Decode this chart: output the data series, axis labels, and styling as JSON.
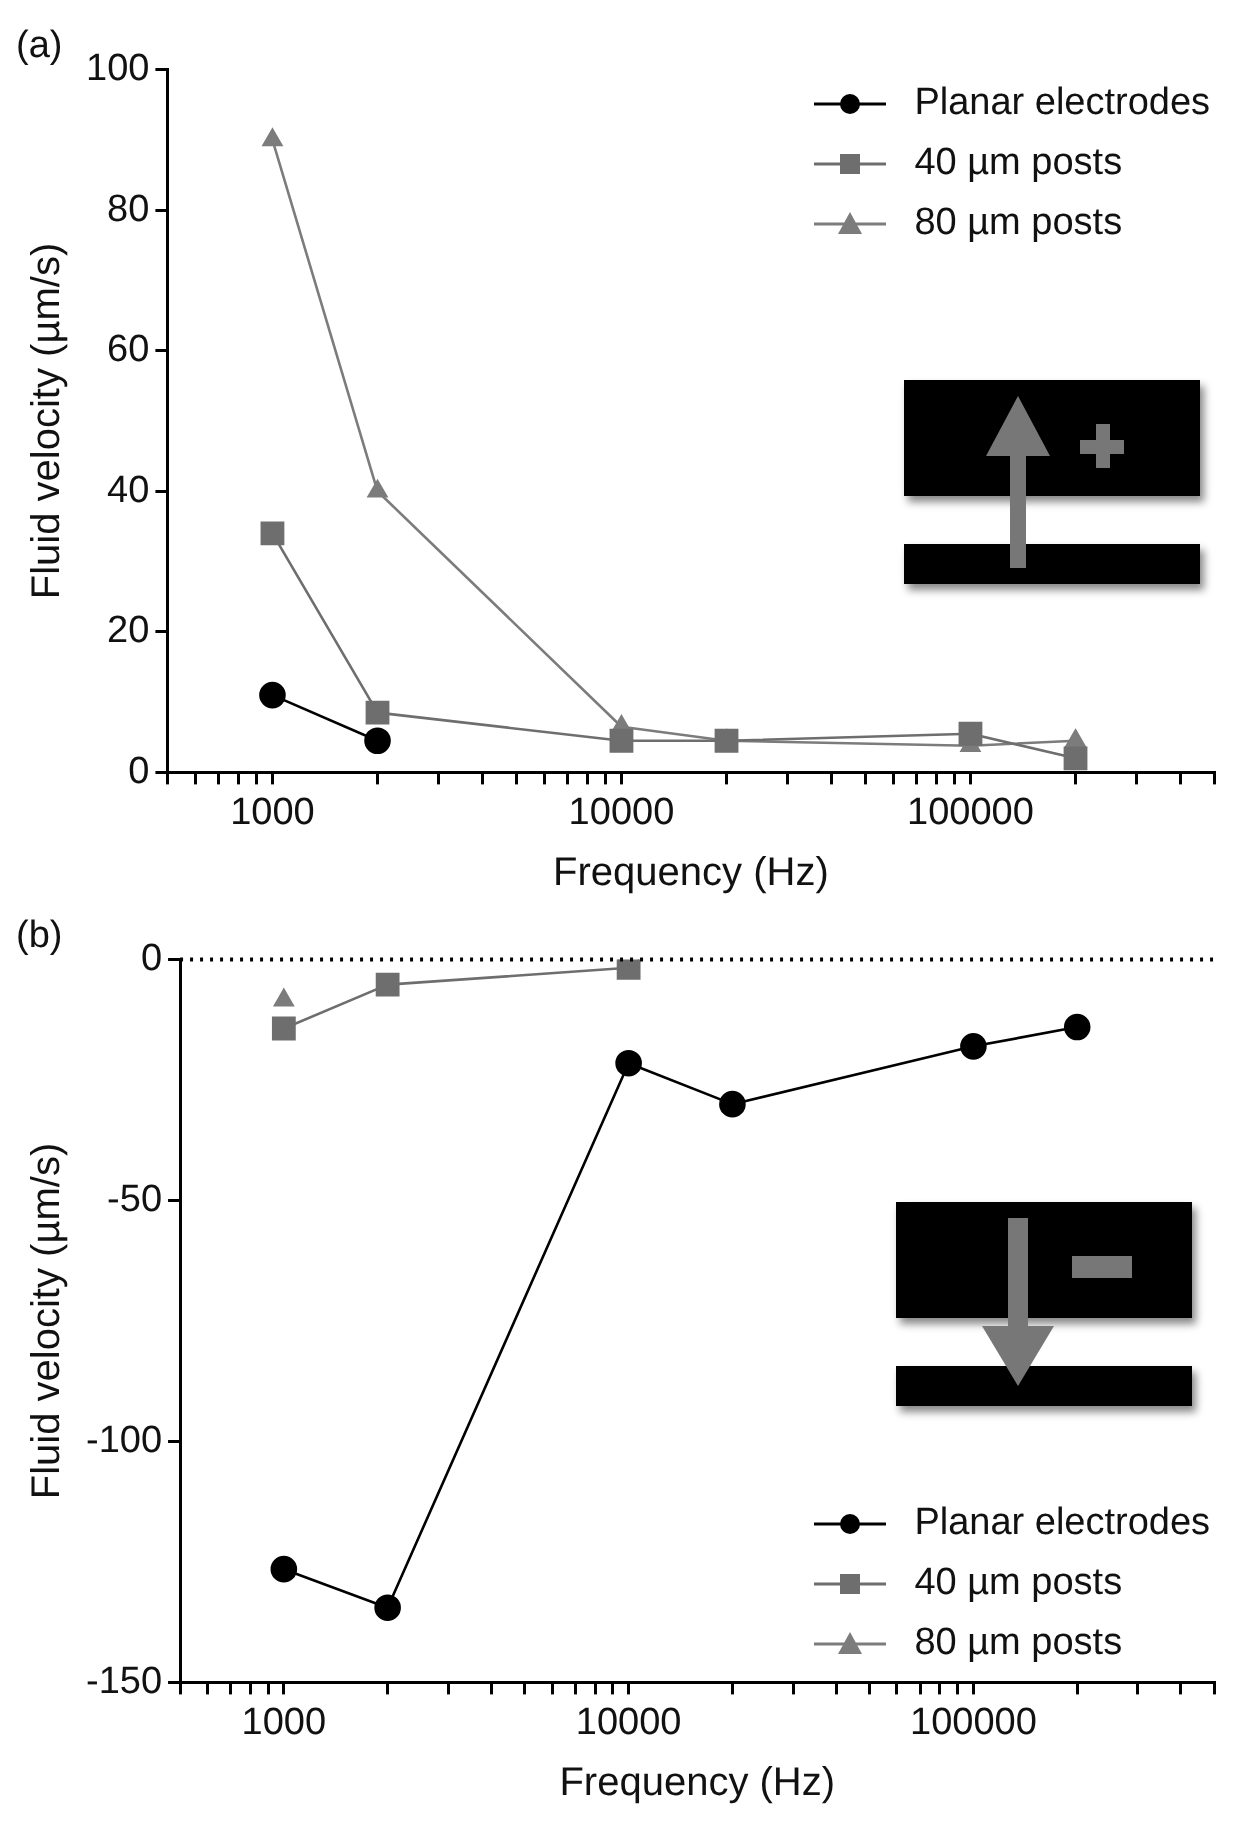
{
  "chart_data": [
    {
      "type": "line",
      "title": "(a)",
      "xlabel": "Frequency (Hz)",
      "ylabel": "Fluid velocity (µm/s)",
      "log": "x",
      "grid": false,
      "legend": "top right",
      "line_style": "solid",
      "xlim": [
        500,
        500000
      ],
      "xticks": [
        {
          "value": 500,
          "label": null
        },
        {
          "value": 600,
          "label": null
        },
        {
          "value": 700,
          "label": null
        },
        {
          "value": 800,
          "label": null
        },
        {
          "value": 900,
          "label": null
        },
        1000,
        {
          "value": 2000,
          "label": null
        },
        {
          "value": 3000,
          "label": null
        },
        {
          "value": 4000,
          "label": null
        },
        {
          "value": 5000,
          "label": null
        },
        {
          "value": 6000,
          "label": null
        },
        {
          "value": 7000,
          "label": null
        },
        {
          "value": 8000,
          "label": null
        },
        {
          "value": 9000,
          "label": null
        },
        10000,
        {
          "value": 20000,
          "label": null
        },
        {
          "value": 30000,
          "label": null
        },
        {
          "value": 40000,
          "label": null
        },
        {
          "value": 50000,
          "label": null
        },
        {
          "value": 60000,
          "label": null
        },
        {
          "value": 70000,
          "label": null
        },
        {
          "value": 80000,
          "label": null
        },
        {
          "value": 90000,
          "label": null
        },
        100000,
        {
          "value": 200000,
          "label": null
        },
        {
          "value": 300000,
          "label": null
        },
        {
          "value": 400000,
          "label": null
        },
        {
          "value": 500000,
          "label": null
        }
      ],
      "ylim": [
        0,
        100
      ],
      "yticks": [
        0,
        20,
        40,
        60,
        80,
        100
      ],
      "series": [
        {
          "name": "Planar electrodes",
          "color": "#000000",
          "marker": "circle",
          "x": [
            1000,
            2000
          ],
          "values": [
            11,
            4.5
          ]
        },
        {
          "name": "40 µm posts",
          "color": "#6e6e6e",
          "marker": "square",
          "x": [
            1000,
            2000,
            10000,
            20000,
            100000,
            200000
          ],
          "values": [
            34,
            8.5,
            4.5,
            4.5,
            5.5,
            2
          ]
        },
        {
          "name": "80 µm posts",
          "color": "#7c7c7c",
          "marker": "triangle",
          "x": [
            1000,
            2000,
            10000,
            20000,
            100000,
            200000
          ],
          "values": [
            90,
            40,
            6.5,
            4.5,
            3.8,
            4.5
          ]
        }
      ]
    },
    {
      "type": "line",
      "title": "(b)",
      "xlabel": "Frequency (Hz)",
      "ylabel": "Fluid velocity (µm/s)",
      "log": "x",
      "grid": false,
      "legend": "bottom right",
      "line_style": "solid",
      "xlim": [
        500,
        500000
      ],
      "xticks": [
        {
          "value": 500,
          "label": null
        },
        {
          "value": 600,
          "label": null
        },
        {
          "value": 700,
          "label": null
        },
        {
          "value": 800,
          "label": null
        },
        {
          "value": 900,
          "label": null
        },
        1000,
        {
          "value": 2000,
          "label": null
        },
        {
          "value": 3000,
          "label": null
        },
        {
          "value": 4000,
          "label": null
        },
        {
          "value": 5000,
          "label": null
        },
        {
          "value": 6000,
          "label": null
        },
        {
          "value": 7000,
          "label": null
        },
        {
          "value": 8000,
          "label": null
        },
        {
          "value": 9000,
          "label": null
        },
        10000,
        {
          "value": 20000,
          "label": null
        },
        {
          "value": 30000,
          "label": null
        },
        {
          "value": 40000,
          "label": null
        },
        {
          "value": 50000,
          "label": null
        },
        {
          "value": 60000,
          "label": null
        },
        {
          "value": 70000,
          "label": null
        },
        {
          "value": 80000,
          "label": null
        },
        {
          "value": 90000,
          "label": null
        },
        100000,
        {
          "value": 200000,
          "label": null
        },
        {
          "value": 300000,
          "label": null
        },
        {
          "value": 400000,
          "label": null
        },
        {
          "value": 500000,
          "label": null
        }
      ],
      "ylim": [
        -150,
        0
      ],
      "yticks": [
        -150,
        -100,
        -50,
        0
      ],
      "ref_lines": [
        {
          "axis": "y",
          "value": 0,
          "color": "#000000",
          "line_style": "dotted"
        }
      ],
      "series": [
        {
          "name": "Planar electrodes",
          "color": "#000000",
          "marker": "circle",
          "x": [
            1000,
            2000,
            10000,
            20000,
            100000,
            200000
          ],
          "values": [
            -126.5,
            -134.5,
            -21.5,
            -30,
            -18,
            -14
          ]
        },
        {
          "name": "40 µm posts",
          "color": "#6e6e6e",
          "marker": "square",
          "x": [
            1000,
            2000,
            10000
          ],
          "values": [
            -14.3,
            -5.2,
            -1.7
          ]
        },
        {
          "name": "80 µm posts",
          "color": "#7c7c7c",
          "marker": "triangle",
          "x": [
            1000
          ],
          "values": [
            -8.4
          ]
        }
      ]
    }
  ]
}
